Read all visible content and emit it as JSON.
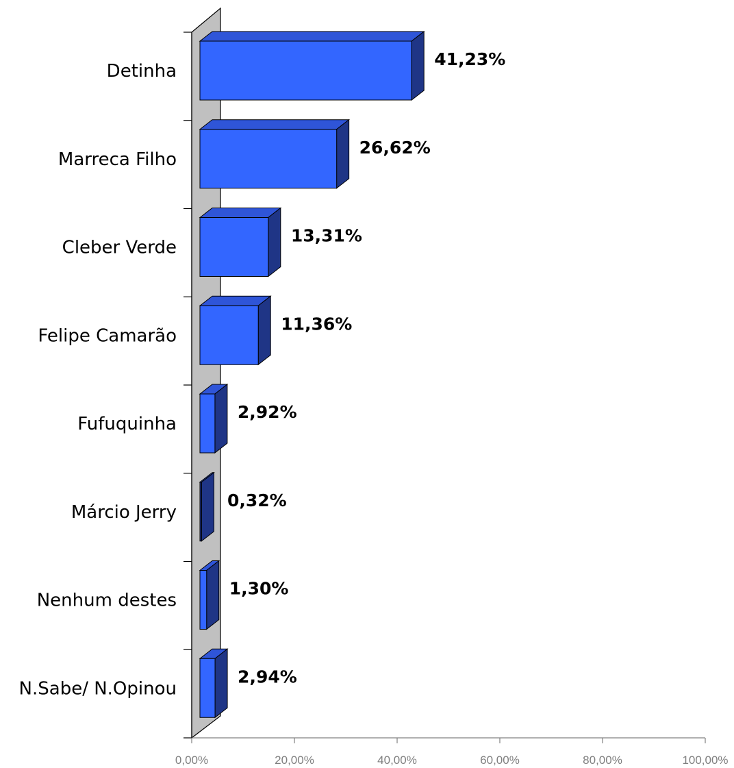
{
  "colors": {
    "bar_front": "#3366ff",
    "bar_top": "#2f55d8",
    "bar_side": "#1f3586",
    "wall": "#c0c0c0",
    "axis": "#000000",
    "x_axis": "#808080",
    "tick_text": "#7f7f7f"
  },
  "chart_data": {
    "type": "bar",
    "orientation": "horizontal",
    "three_d": true,
    "categories": [
      "Detinha",
      "Marreca Filho",
      "Cleber Verde",
      "Felipe Camarão",
      "Fufuquinha",
      "Márcio Jerry",
      "Nenhum destes",
      "N.Sabe/ N.Opinou"
    ],
    "values": [
      41.23,
      26.62,
      13.31,
      11.36,
      2.92,
      0.32,
      1.3,
      2.94
    ],
    "value_labels": [
      "41,23%",
      "26,62%",
      "13,31%",
      "11,36%",
      "2,92%",
      "0,32%",
      "1,30%",
      "2,94%"
    ],
    "xlim": [
      0,
      100
    ],
    "x_ticks": [
      "0,00%",
      "20,00%",
      "40,00%",
      "60,00%",
      "80,00%",
      "100,00%"
    ],
    "grid": false,
    "legend": "none"
  }
}
